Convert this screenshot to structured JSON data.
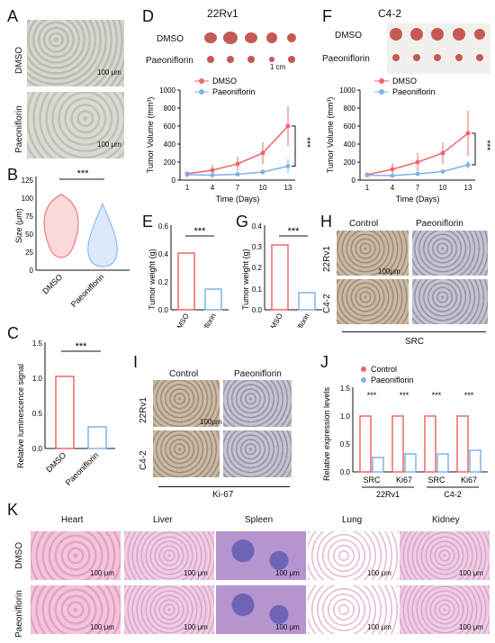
{
  "panels": {
    "A": {
      "label": "A",
      "rows": [
        "DMSO",
        "Paeoniflorin"
      ],
      "scale": "100 μm"
    },
    "B": {
      "label": "B",
      "ylabel": "Size (μm)",
      "yticks": [
        "0",
        "25",
        "50",
        "75",
        "100",
        "125"
      ],
      "x": [
        "DMSO",
        "Paeoniflorin"
      ],
      "sig": "***"
    },
    "C": {
      "label": "C",
      "ylabel": "Relative luminescence signal",
      "yticks": [
        "0.0",
        "0.5",
        "1.0",
        "1.5"
      ],
      "x": [
        "DMSO",
        "Paeoniflorin"
      ],
      "sig": "***"
    },
    "D": {
      "label": "D",
      "title": "22Rv1",
      "rows": [
        "DMSO",
        "Paeoniflorin"
      ],
      "scale": "1 cm"
    },
    "F": {
      "label": "F",
      "title": "C4-2",
      "rows": [
        "DMSO",
        "Paeoniflorin"
      ]
    },
    "E": {
      "label": "E",
      "ylabel": "Tumor weight (g)",
      "yticks": [
        "0.0",
        "0.2",
        "0.4",
        "0.6"
      ],
      "x": [
        "DMSO",
        "Paeoniflorin"
      ],
      "sig": "***"
    },
    "G": {
      "label": "G",
      "ylabel": "Tumor weight (g)",
      "yticks": [
        "0.0",
        "0.1",
        "0.2",
        "0.3",
        "0.4"
      ],
      "x": [
        "DMSO",
        "Paeoniflorin"
      ],
      "sig": "***"
    },
    "H": {
      "label": "H",
      "cols": [
        "Control",
        "Paeoniflorin"
      ],
      "rows": [
        "22Rv1",
        "C4-2"
      ],
      "scale": "100μm",
      "caption": "SRC"
    },
    "I": {
      "label": "I",
      "cols": [
        "Control",
        "Paeoniflorin"
      ],
      "rows": [
        "22Rv1",
        "C4-2"
      ],
      "scale": "100μm",
      "caption": "Ki-67"
    },
    "J": {
      "label": "J",
      "ylabel": "Relative expression levels",
      "yticks": [
        "0.0",
        "0.5",
        "1.0",
        "1.5"
      ],
      "legend": [
        "Control",
        "Paeoniflorin"
      ],
      "x": [
        "SRC",
        "Ki67",
        "SRC",
        "Ki67"
      ],
      "groups": [
        "22Rv1",
        "C4-2"
      ],
      "sig": "***"
    },
    "K": {
      "label": "K",
      "cols": [
        "Heart",
        "Liver",
        "Spleen",
        "Lung",
        "Kidney"
      ],
      "rows": [
        "DMSO",
        "Paeoniflorin"
      ],
      "scale": "100 μm"
    }
  },
  "chart_data": [
    {
      "id": "D-chart",
      "type": "line",
      "ylabel": "Tumor Volume (mm³)",
      "xlabel": "Time (Days)",
      "x": [
        1,
        4,
        7,
        10,
        13
      ],
      "ylim": [
        0,
        1000
      ],
      "yticks": [
        0,
        200,
        400,
        600,
        800,
        1000
      ],
      "series": [
        {
          "name": "DMSO",
          "color": "#f0666a",
          "values": [
            70,
            110,
            180,
            300,
            600
          ],
          "err": [
            20,
            60,
            80,
            120,
            220
          ]
        },
        {
          "name": "Paeoniflorin",
          "color": "#7fb3ea",
          "values": [
            60,
            55,
            65,
            90,
            155
          ],
          "err": [
            10,
            15,
            20,
            30,
            80
          ]
        }
      ],
      "sig": "***"
    },
    {
      "id": "F-chart",
      "type": "line",
      "ylabel": "Tumor Volume (mm³)",
      "xlabel": "Time (Days)",
      "x": [
        1,
        4,
        7,
        10,
        13
      ],
      "ylim": [
        0,
        1000
      ],
      "yticks": [
        0,
        200,
        400,
        600,
        800,
        1000
      ],
      "series": [
        {
          "name": "DMSO",
          "color": "#f0666a",
          "values": [
            60,
            120,
            200,
            300,
            520
          ],
          "err": [
            15,
            70,
            100,
            120,
            250
          ]
        },
        {
          "name": "Paeoniflorin",
          "color": "#7fb3ea",
          "values": [
            55,
            50,
            70,
            95,
            170
          ],
          "err": [
            10,
            15,
            20,
            25,
            40
          ]
        }
      ],
      "sig": "***"
    }
  ]
}
